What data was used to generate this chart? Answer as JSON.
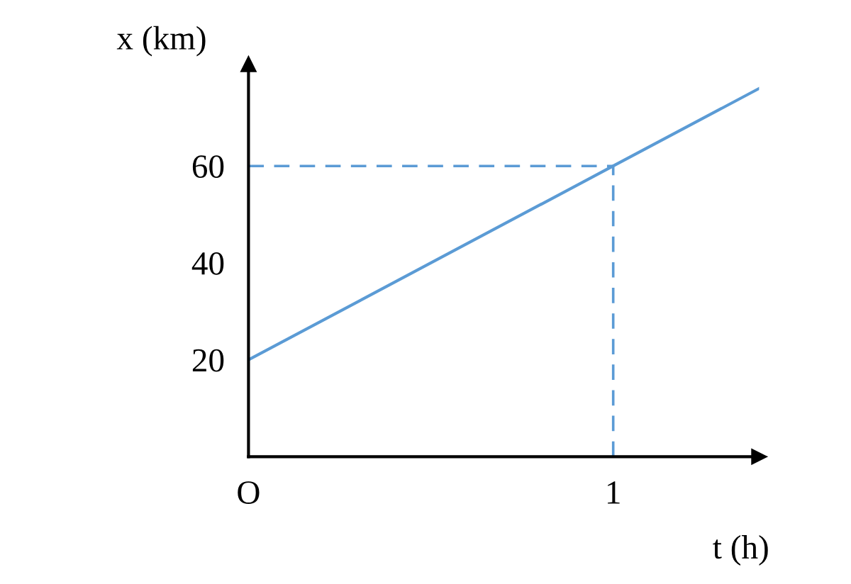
{
  "chart_data": {
    "type": "line",
    "xlabel": "t (h)",
    "ylabel": "x (km)",
    "categories": [
      "O",
      null,
      null,
      null,
      null,
      "1",
      null,
      null
    ],
    "series": [
      {
        "color": "#5b9bd5",
        "values": [
          20,
          null,
          null,
          null,
          null,
          60,
          null,
          76
        ]
      }
    ],
    "ylim": [
      0,
      81
    ],
    "yticks": [
      20,
      40,
      60
    ],
    "ref_lines": [
      {
        "axis": "y",
        "value": 60,
        "color": "#5b9bd5",
        "line_style": "dashed"
      },
      {
        "axis": "x",
        "value": "1",
        "color": "#5b9bd5",
        "line_style": "dashed"
      }
    ],
    "marker": "none",
    "line_style": "solid"
  }
}
